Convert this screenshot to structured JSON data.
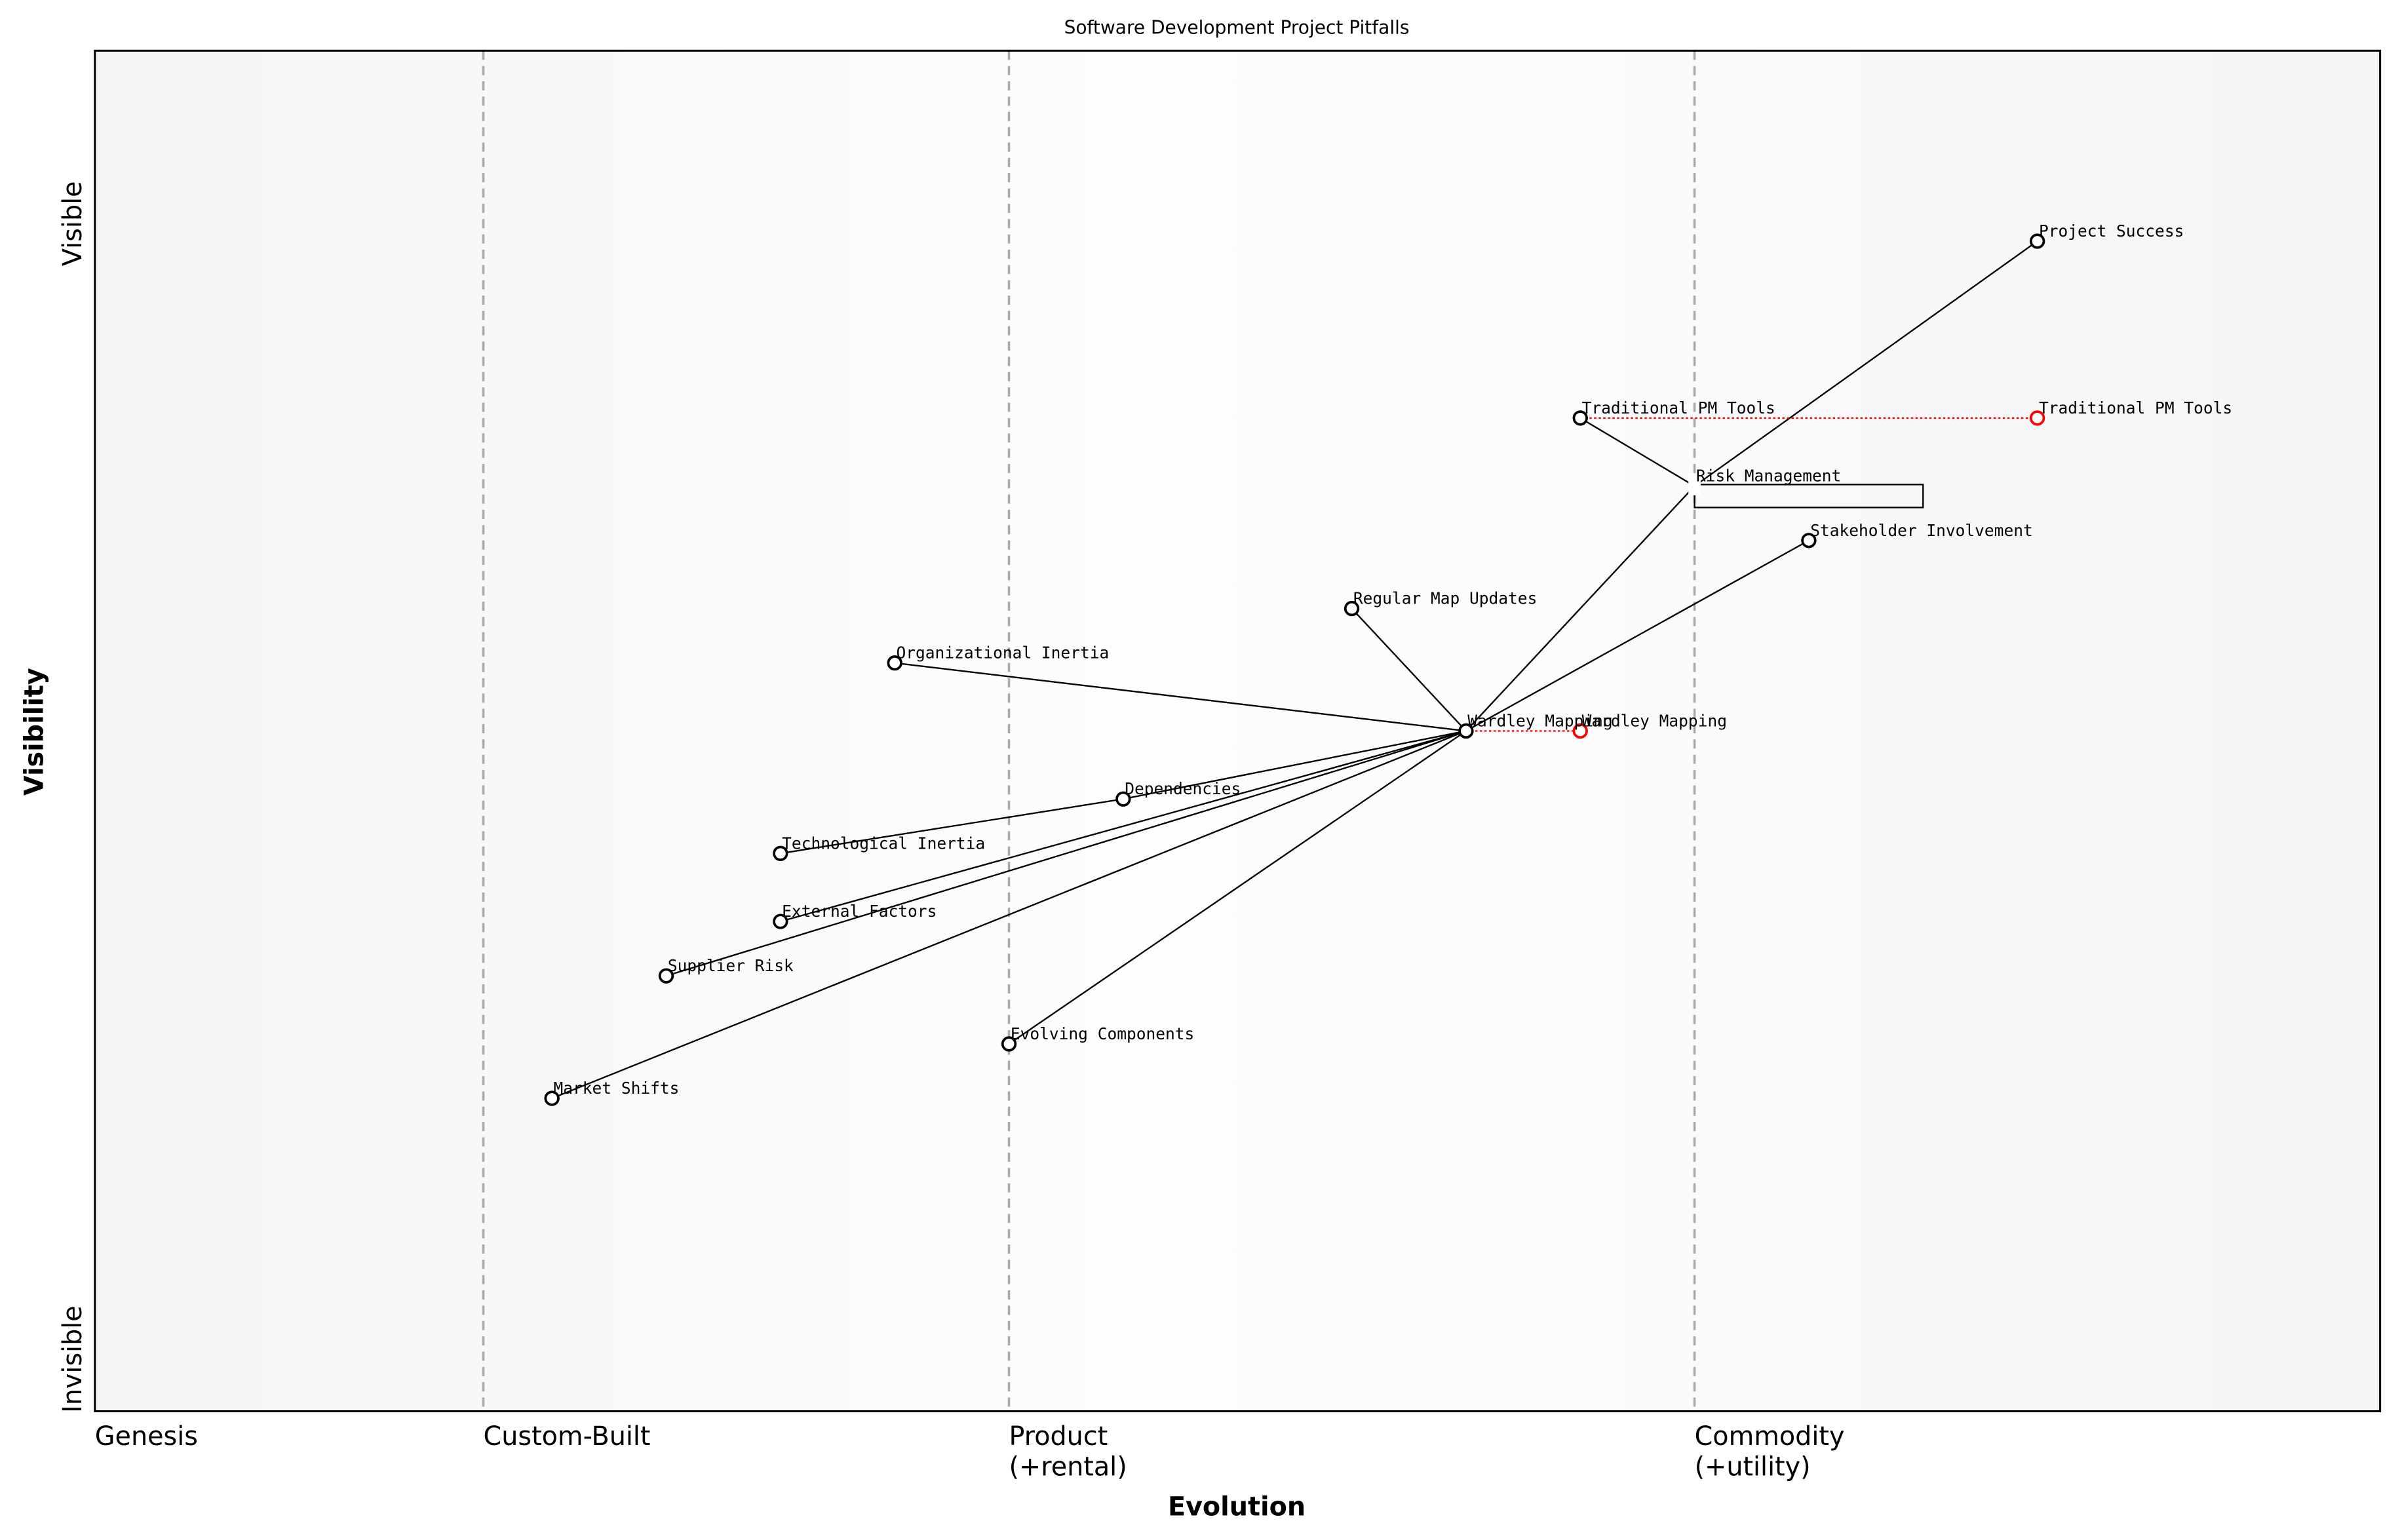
{
  "chart_data": {
    "type": "scatter",
    "subtype": "wardley-map",
    "title": "Software Development Project Pitfalls",
    "xlabel": "Evolution",
    "ylabel": "Visibility",
    "xlim": [
      0,
      1
    ],
    "ylim": [
      0,
      1
    ],
    "x_stage_labels": [
      {
        "x": 0.0,
        "label": "Genesis"
      },
      {
        "x": 0.17,
        "label": "Custom-Built"
      },
      {
        "x": 0.4,
        "label": "Product\n(+rental)"
      },
      {
        "x": 0.7,
        "label": "Commodity\n(+utility)"
      }
    ],
    "stage_boundaries": [
      0.17,
      0.4,
      0.7
    ],
    "y_labels": {
      "top": "Visible",
      "bottom": "Invisible"
    },
    "components": [
      {
        "name": "Project Success",
        "x": 0.85,
        "y": 0.86
      },
      {
        "name": "Traditional PM Tools",
        "x": 0.65,
        "y": 0.73
      },
      {
        "name": "Risk Management",
        "x": 0.7,
        "y": 0.68,
        "hidden_marker": true
      },
      {
        "name": "Stakeholder Involvement",
        "x": 0.75,
        "y": 0.64
      },
      {
        "name": "Regular Map Updates",
        "x": 0.55,
        "y": 0.59
      },
      {
        "name": "Organizational Inertia",
        "x": 0.35,
        "y": 0.55
      },
      {
        "name": "Wardley Mapping",
        "x": 0.6,
        "y": 0.5
      },
      {
        "name": "Dependencies",
        "x": 0.45,
        "y": 0.45
      },
      {
        "name": "Technological Inertia",
        "x": 0.3,
        "y": 0.41
      },
      {
        "name": "External Factors",
        "x": 0.3,
        "y": 0.36
      },
      {
        "name": "Supplier Risk",
        "x": 0.25,
        "y": 0.32
      },
      {
        "name": "Evolving Components",
        "x": 0.4,
        "y": 0.27
      },
      {
        "name": "Market Shifts",
        "x": 0.2,
        "y": 0.23
      }
    ],
    "evolutions": [
      {
        "name": "Traditional PM Tools",
        "from": 0.65,
        "to": 0.85,
        "y": 0.73
      },
      {
        "name": "Wardley Mapping",
        "from": 0.6,
        "to": 0.65,
        "y": 0.5
      }
    ],
    "pipelines": [
      {
        "name": "Risk Management",
        "x_start": 0.7,
        "x_end": 0.8,
        "y": 0.68
      }
    ],
    "links": [
      [
        "Project Success",
        "Risk Management"
      ],
      [
        "Traditional PM Tools",
        "Risk Management"
      ],
      [
        "Risk Management",
        "Wardley Mapping"
      ],
      [
        "Stakeholder Involvement",
        "Wardley Mapping"
      ],
      [
        "Regular Map Updates",
        "Wardley Mapping"
      ],
      [
        "Organizational Inertia",
        "Wardley Mapping"
      ],
      [
        "Dependencies",
        "Wardley Mapping"
      ],
      [
        "Technological Inertia",
        "Dependencies"
      ],
      [
        "External Factors",
        "Wardley Mapping"
      ],
      [
        "Supplier Risk",
        "Wardley Mapping"
      ],
      [
        "Market Shifts",
        "Wardley Mapping"
      ],
      [
        "Evolving Components",
        "Wardley Mapping"
      ]
    ],
    "colors": {
      "evolve": "#ff0000",
      "component": "#000000",
      "stage_line": "#aaaaaa"
    },
    "grid": false
  }
}
